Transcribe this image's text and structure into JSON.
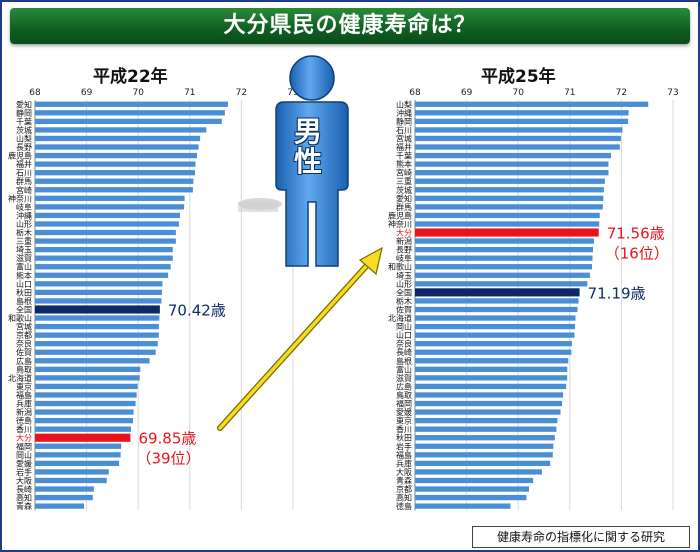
{
  "title": "大分県民の健康寿命は？",
  "person_label": [
    "男",
    "性"
  ],
  "footer": "健康寿命の指標化に関する研究",
  "colors": {
    "bar": "#4a8fd6",
    "highlight_red": "#e8141b",
    "highlight_navy": "#0d2a66",
    "banner": "#0e5e22",
    "arrow": "#e8d21c"
  },
  "chart_data": [
    {
      "type": "bar",
      "title": "平成22年",
      "orientation": "horizontal",
      "xlim": [
        68,
        73
      ],
      "ticks": [
        68,
        69,
        70,
        71,
        72,
        73
      ],
      "grid": true,
      "categories": [
        "愛知",
        "静岡",
        "千葉",
        "茨城",
        "山梨",
        "長野",
        "鹿児島",
        "福井",
        "石川",
        "群馬",
        "宮崎",
        "神奈川",
        "岐阜",
        "沖縄",
        "山形",
        "栃木",
        "三重",
        "埼玉",
        "滋賀",
        "富山",
        "熊本",
        "山口",
        "秋田",
        "島根",
        "全国",
        "和歌山",
        "宮城",
        "京都",
        "奈良",
        "佐賀",
        "広島",
        "鳥取",
        "北海道",
        "東京",
        "福島",
        "兵庫",
        "新潟",
        "徳島",
        "香川",
        "大分",
        "福岡",
        "岡山",
        "愛媛",
        "岩手",
        "大阪",
        "長崎",
        "高知",
        "青森"
      ],
      "values": [
        71.74,
        71.68,
        71.62,
        71.32,
        71.2,
        71.17,
        71.14,
        71.11,
        71.1,
        71.07,
        71.06,
        70.9,
        70.89,
        70.81,
        70.79,
        70.73,
        70.73,
        70.67,
        70.67,
        70.63,
        70.58,
        70.47,
        70.46,
        70.45,
        70.42,
        70.41,
        70.4,
        70.4,
        70.38,
        70.34,
        70.22,
        70.04,
        70.03,
        69.99,
        69.97,
        69.95,
        69.91,
        69.9,
        69.86,
        69.85,
        69.67,
        69.66,
        69.63,
        69.43,
        69.39,
        69.14,
        69.12,
        68.95
      ],
      "highlights": [
        {
          "category": "全国",
          "value_label": "70.42歳",
          "color": "navy"
        },
        {
          "category": "大分",
          "value_label": "69.85歳",
          "rank_label": "（39位）",
          "color": "red"
        }
      ]
    },
    {
      "type": "bar",
      "title": "平成25年",
      "orientation": "horizontal",
      "xlim": [
        68,
        73
      ],
      "ticks": [
        68,
        69,
        70,
        71,
        72,
        73
      ],
      "grid": true,
      "categories": [
        "山梨",
        "沖縄",
        "静岡",
        "石川",
        "宮城",
        "福井",
        "千葉",
        "熊本",
        "宮崎",
        "三重",
        "茨城",
        "愛知",
        "群馬",
        "鹿児島",
        "神奈川",
        "大分",
        "新潟",
        "長野",
        "岐阜",
        "和歌山",
        "埼玉",
        "山形",
        "全国",
        "栃木",
        "佐賀",
        "北海道",
        "岡山",
        "山口",
        "奈良",
        "長崎",
        "島根",
        "富山",
        "滋賀",
        "広島",
        "鳥取",
        "福岡",
        "愛媛",
        "東京",
        "香川",
        "秋田",
        "岩手",
        "福島",
        "兵庫",
        "大阪",
        "青森",
        "京都",
        "高知",
        "徳島"
      ],
      "values": [
        72.52,
        72.14,
        72.13,
        72.02,
        71.99,
        71.97,
        71.8,
        71.75,
        71.75,
        71.68,
        71.66,
        71.65,
        71.64,
        71.58,
        71.57,
        71.56,
        71.47,
        71.45,
        71.44,
        71.43,
        71.39,
        71.34,
        71.19,
        71.17,
        71.15,
        71.11,
        71.1,
        71.09,
        71.04,
        71.03,
        70.97,
        70.95,
        70.95,
        70.93,
        70.87,
        70.85,
        70.82,
        70.76,
        70.74,
        70.71,
        70.68,
        70.67,
        70.62,
        70.46,
        70.29,
        70.21,
        70.16,
        69.85
      ],
      "highlights": [
        {
          "category": "大分",
          "value_label": "71.56歳",
          "rank_label": "（16位）",
          "color": "red"
        },
        {
          "category": "全国",
          "value_label": "71.19歳",
          "color": "navy"
        }
      ]
    }
  ]
}
